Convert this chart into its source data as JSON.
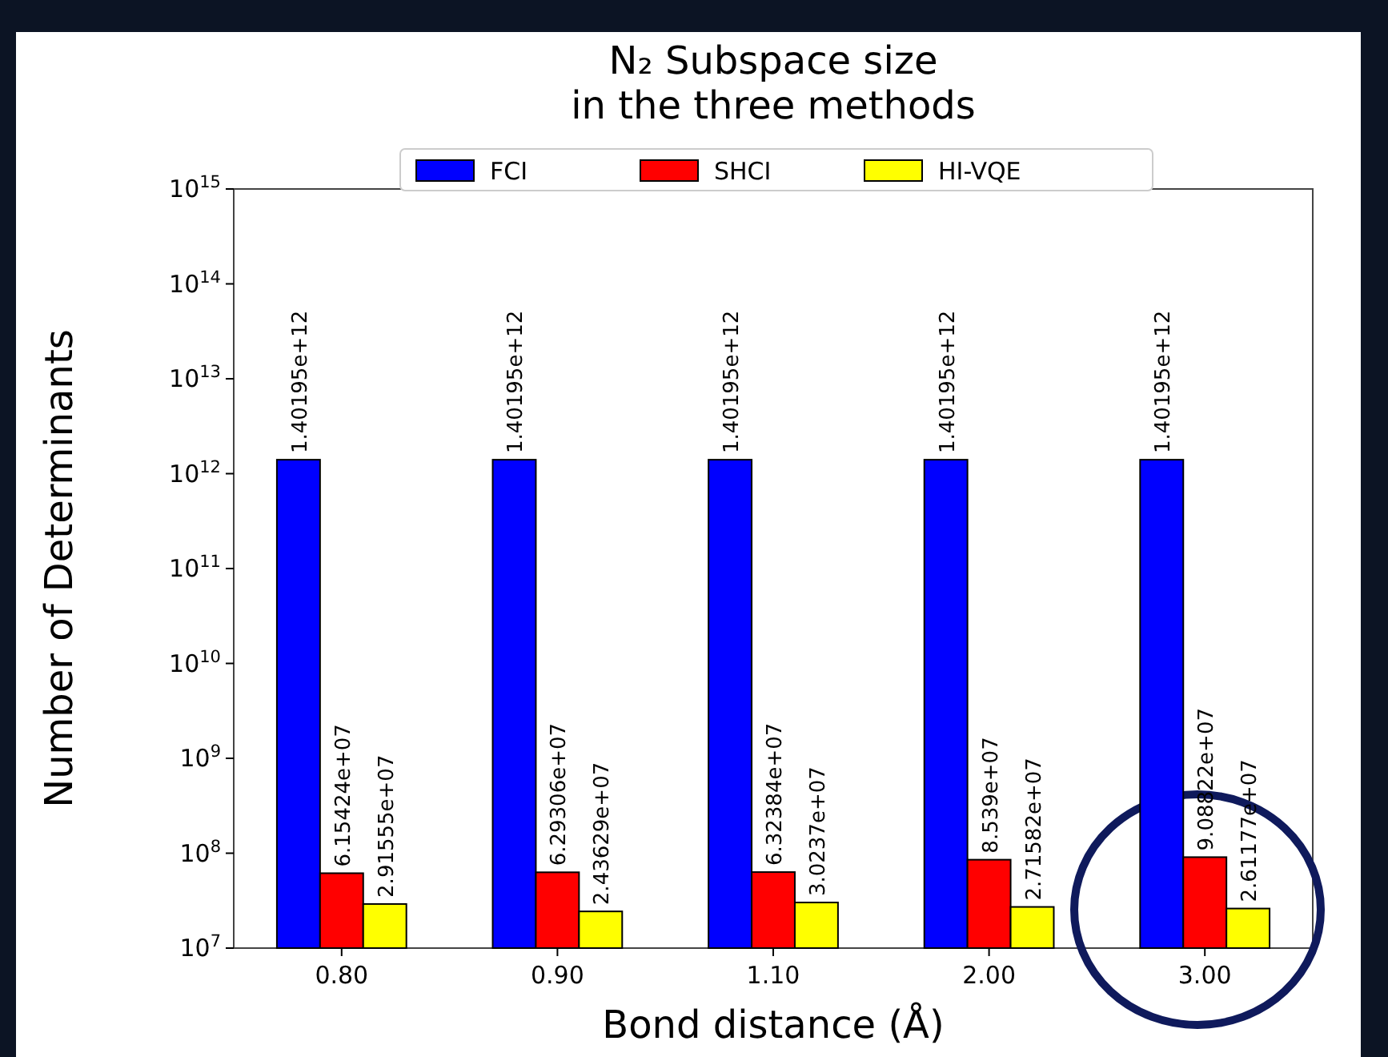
{
  "chart_data": {
    "type": "bar",
    "title": "N₂ Subspace size\nin the three methods",
    "xlabel": "Bond distance (Å)",
    "ylabel": "Number of Determinants",
    "categories": [
      "0.80",
      "0.90",
      "1.10",
      "2.00",
      "3.00"
    ],
    "series": [
      {
        "name": "FCI",
        "color": "#0000ff",
        "values": [
          1401950000000,
          1401950000000,
          1401950000000,
          1401950000000,
          1401950000000
        ],
        "value_labels": [
          "1.40195e+12",
          "1.40195e+12",
          "1.40195e+12",
          "1.40195e+12",
          "1.40195e+12"
        ]
      },
      {
        "name": "SHCI",
        "color": "#ff0000",
        "values": [
          61542400,
          62930600,
          63238400,
          85390000,
          90882200
        ],
        "value_labels": [
          "6.15424e+07",
          "6.29306e+07",
          "6.32384e+07",
          "8.539e+07",
          "9.08822e+07"
        ]
      },
      {
        "name": "HI-VQE",
        "color": "#ffff00",
        "values": [
          29155500,
          24362900,
          30237000,
          27158200,
          26117700
        ],
        "value_labels": [
          "2.91555e+07",
          "2.43629e+07",
          "3.0237e+07",
          "2.71582e+07",
          "2.61177e+07"
        ]
      }
    ],
    "log": "y",
    "ylim": [
      10000000,
      1000000000000000
    ],
    "yticks": [
      {
        "value": 10000000,
        "label": "10$^{7}$"
      },
      {
        "value": 100000000,
        "label": "10$^{8}$"
      },
      {
        "value": 1000000000,
        "label": "10$^{9}$"
      },
      {
        "value": 10000000000,
        "label": "10$^{10}$"
      },
      {
        "value": 100000000000,
        "label": "10$^{11}$"
      },
      {
        "value": 1000000000000,
        "label": "10$^{12}$"
      },
      {
        "value": 10000000000000,
        "label": "10$^{13}$"
      },
      {
        "value": 100000000000000,
        "label": "10$^{14}$"
      },
      {
        "value": 1000000000000000,
        "label": "10$^{15}$"
      }
    ],
    "legend": "top",
    "grid": false
  }
}
